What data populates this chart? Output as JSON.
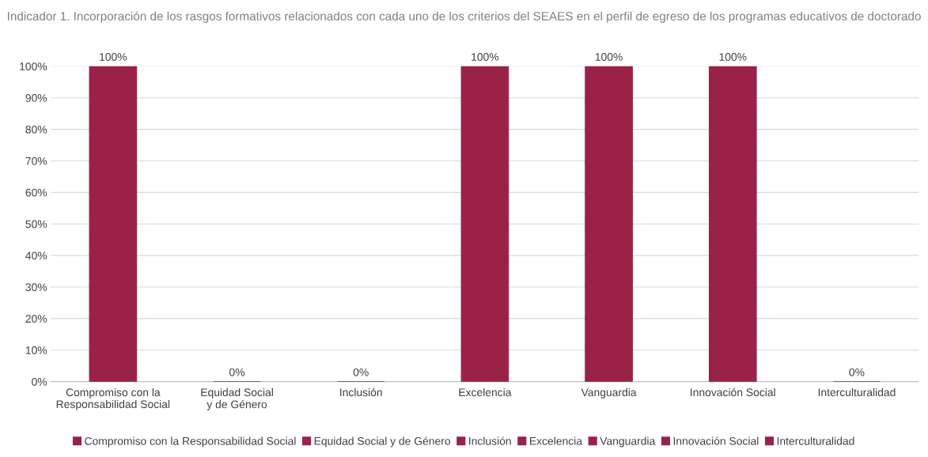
{
  "chart_data": {
    "type": "bar",
    "title": "Indicador 1. Incorporación de los rasgos formativos relacionados con cada uno de los criterios del SEAES en el perfil de egreso de los programas educativos de doctorado",
    "categories": [
      "Compromiso con la Responsabilidad Social",
      "Equidad Social y de Género",
      "Inclusión",
      "Excelencia",
      "Vanguardia",
      "Innovación Social",
      "Interculturalidad"
    ],
    "series": [
      {
        "name": "Compromiso con la Responsabilidad Social",
        "color": "#9b2247",
        "values": [
          100,
          null,
          null,
          null,
          null,
          null,
          null
        ],
        "value_labels": [
          "100%",
          null,
          null,
          null,
          null,
          null,
          null
        ]
      },
      {
        "name": "Equidad Social y de Género",
        "color": "#9b2247",
        "values": [
          null,
          0,
          null,
          null,
          null,
          null,
          null
        ],
        "value_labels": [
          null,
          "0%",
          null,
          null,
          null,
          null,
          null
        ]
      },
      {
        "name": "Inclusión",
        "color": "#9b2247",
        "values": [
          null,
          null,
          0,
          null,
          null,
          null,
          null
        ],
        "value_labels": [
          null,
          null,
          "0%",
          null,
          null,
          null,
          null
        ]
      },
      {
        "name": "Excelencia",
        "color": "#9b2247",
        "values": [
          null,
          null,
          null,
          100,
          null,
          null,
          null
        ],
        "value_labels": [
          null,
          null,
          null,
          "100%",
          null,
          null,
          null
        ]
      },
      {
        "name": "Vanguardia",
        "color": "#9b2247",
        "values": [
          null,
          null,
          null,
          null,
          100,
          null,
          null
        ],
        "value_labels": [
          null,
          null,
          null,
          null,
          "100%",
          null,
          null
        ]
      },
      {
        "name": "Innovación Social",
        "color": "#9b2247",
        "values": [
          null,
          null,
          null,
          null,
          null,
          100,
          null
        ],
        "value_labels": [
          null,
          null,
          null,
          null,
          null,
          "100%",
          null
        ]
      },
      {
        "name": "Interculturalidad",
        "color": "#9b2247",
        "values": [
          null,
          null,
          null,
          null,
          null,
          null,
          0
        ],
        "value_labels": [
          null,
          null,
          null,
          null,
          null,
          null,
          "0%"
        ]
      }
    ],
    "ylim": [
      0,
      100
    ],
    "yticks": [
      {
        "value": 0,
        "label": "0%"
      },
      {
        "value": 10,
        "label": "10%"
      },
      {
        "value": 20,
        "label": "20%"
      },
      {
        "value": 30,
        "label": "30%"
      },
      {
        "value": 40,
        "label": "40%"
      },
      {
        "value": 50,
        "label": "50%"
      },
      {
        "value": 60,
        "label": "60%"
      },
      {
        "value": 70,
        "label": "70%"
      },
      {
        "value": 80,
        "label": "80%"
      },
      {
        "value": 90,
        "label": "90%"
      },
      {
        "value": 100,
        "label": "100%"
      }
    ],
    "grid": "y",
    "legend": "bottom"
  }
}
